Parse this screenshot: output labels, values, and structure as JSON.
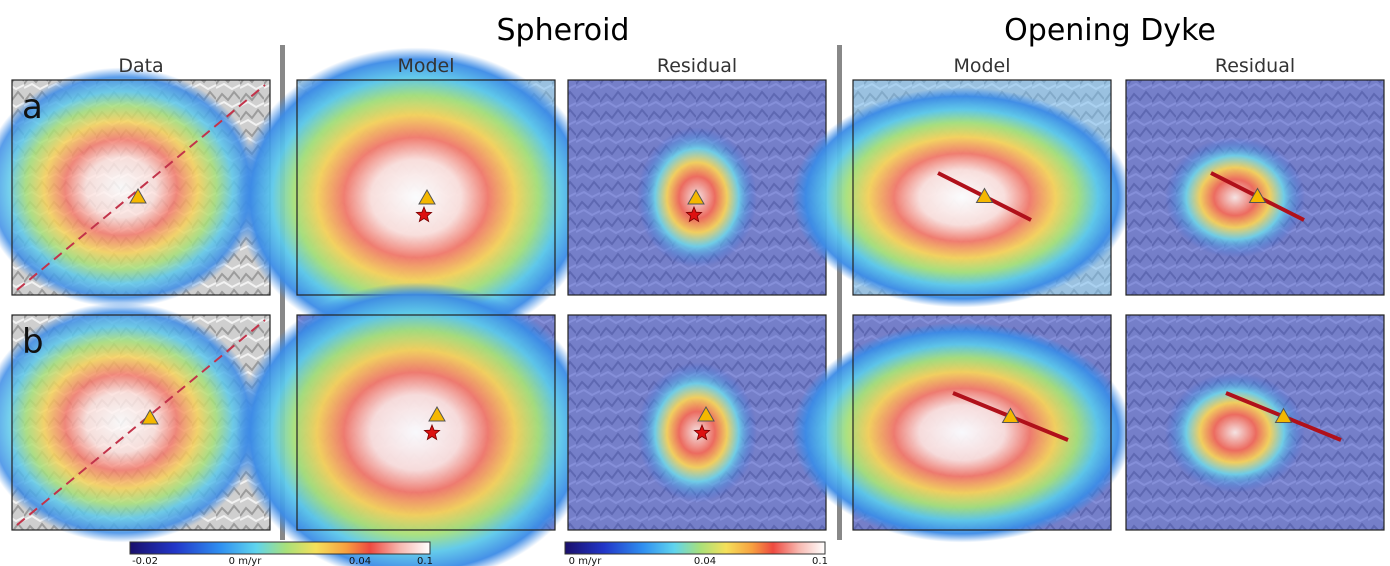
{
  "titles": {
    "spheroid": "Spheroid",
    "dyke": "Opening Dyke"
  },
  "columns": [
    "Data",
    "Model",
    "Residual",
    "Model",
    "Residual"
  ],
  "rows": [
    "a",
    "b"
  ],
  "colorbars": [
    {
      "ticks": [
        "-0.02",
        "0 m/yr",
        "0.04",
        "0.1"
      ]
    },
    {
      "ticks": [
        "0 m/yr",
        "0.04",
        "0.1"
      ]
    }
  ]
}
